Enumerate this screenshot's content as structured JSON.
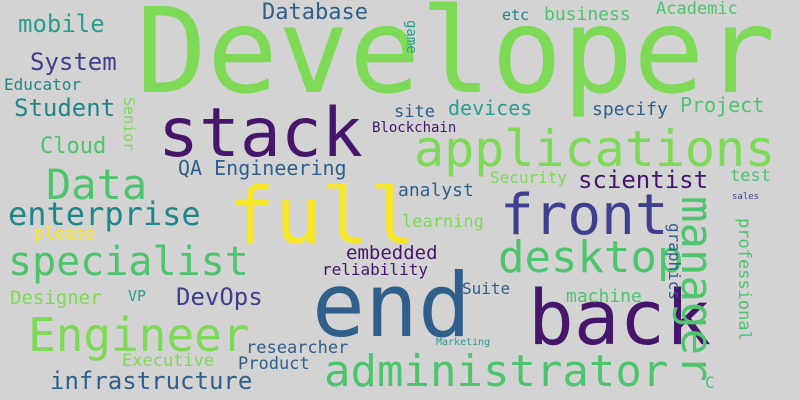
{
  "palette": {
    "background": "#d3d3d3",
    "light_green": "#7ed957",
    "green": "#4ec46e",
    "teal": "#2a9d8f",
    "dark_teal": "#21868a",
    "blue": "#2f5f8a",
    "indigo": "#3f3f8f",
    "purple": "#46166b",
    "yellow": "#f5e62a"
  },
  "words": [
    {
      "text": "Developer",
      "color": "light_green"
    },
    {
      "text": "stack",
      "color": "purple"
    },
    {
      "text": "full",
      "color": "yellow"
    },
    {
      "text": "end",
      "color": "blue"
    },
    {
      "text": "back",
      "color": "purple"
    },
    {
      "text": "front",
      "color": "indigo"
    },
    {
      "text": "applications",
      "color": "light_green"
    },
    {
      "text": "Engineer",
      "color": "light_green"
    },
    {
      "text": "administrator",
      "color": "green"
    },
    {
      "text": "desktop",
      "color": "green"
    },
    {
      "text": "specialist",
      "color": "green"
    },
    {
      "text": "manager",
      "color": "green"
    },
    {
      "text": "Data",
      "color": "green"
    },
    {
      "text": "enterprise",
      "color": "dark_teal"
    },
    {
      "text": "infrastructure",
      "color": "blue"
    },
    {
      "text": "mobile",
      "color": "teal"
    },
    {
      "text": "System",
      "color": "indigo"
    },
    {
      "text": "Student",
      "color": "dark_teal"
    },
    {
      "text": "Database",
      "color": "blue"
    },
    {
      "text": "Cloud",
      "color": "green"
    },
    {
      "text": "scientist",
      "color": "purple"
    },
    {
      "text": "DevOps",
      "color": "indigo"
    },
    {
      "text": "QA Engineering",
      "color": "blue"
    },
    {
      "text": "devices",
      "color": "teal"
    },
    {
      "text": "site",
      "color": "blue"
    },
    {
      "text": "specify",
      "color": "blue"
    },
    {
      "text": "Project",
      "color": "green"
    },
    {
      "text": "business",
      "color": "green"
    },
    {
      "text": "etc",
      "color": "dark_teal"
    },
    {
      "text": "Academic",
      "color": "green"
    },
    {
      "text": "game",
      "color": "teal"
    },
    {
      "text": "Educator",
      "color": "dark_teal"
    },
    {
      "text": "Senior",
      "color": "light_green"
    },
    {
      "text": "Blockchain",
      "color": "purple"
    },
    {
      "text": "analyst",
      "color": "blue"
    },
    {
      "text": "Security",
      "color": "light_green"
    },
    {
      "text": "test",
      "color": "green"
    },
    {
      "text": "learning",
      "color": "light_green"
    },
    {
      "text": "please",
      "color": "yellow"
    },
    {
      "text": "embedded",
      "color": "purple"
    },
    {
      "text": "reliability",
      "color": "purple"
    },
    {
      "text": "Designer",
      "color": "light_green"
    },
    {
      "text": "VP",
      "color": "teal"
    },
    {
      "text": "Suite",
      "color": "blue"
    },
    {
      "text": "machine",
      "color": "green"
    },
    {
      "text": "graphics",
      "color": "blue"
    },
    {
      "text": "professional",
      "color": "green"
    },
    {
      "text": "sales",
      "color": "indigo"
    },
    {
      "text": "researcher",
      "color": "blue"
    },
    {
      "text": "Executive",
      "color": "light_green"
    },
    {
      "text": "Product",
      "color": "blue"
    },
    {
      "text": "Marketing",
      "color": "teal"
    },
    {
      "text": "C",
      "color": "green"
    }
  ]
}
